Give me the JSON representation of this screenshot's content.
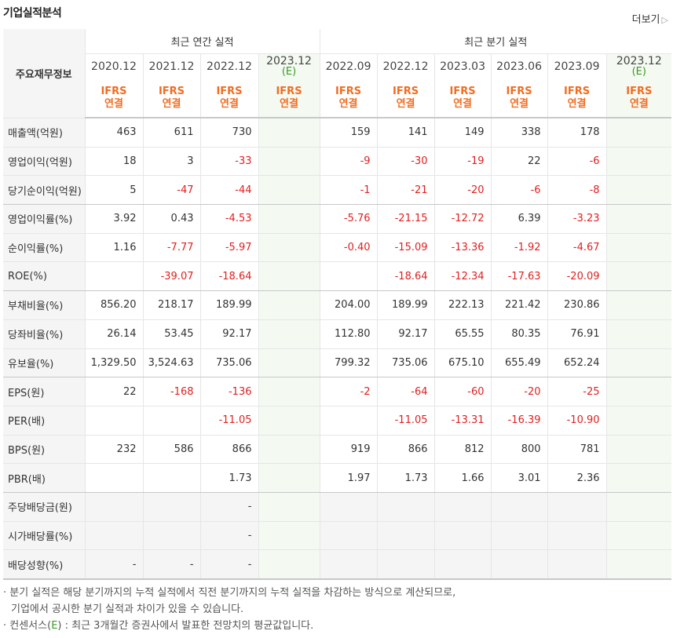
{
  "header": {
    "title": "기업실적분석",
    "more_label": "더보기"
  },
  "table": {
    "corner_label": "주요재무정보",
    "groups": {
      "annual": "최근 연간 실적",
      "quarterly": "최근 분기 실적"
    },
    "periods": {
      "a1": "2020.12",
      "a2": "2021.12",
      "a3": "2022.12",
      "a4": "2023.12",
      "a4_e": "(E)",
      "q1": "2022.09",
      "q2": "2022.12",
      "q3": "2023.03",
      "q4": "2023.06",
      "q5": "2023.09",
      "q6": "2023.12",
      "q6_e": "(E)"
    },
    "std_top": "IFRS",
    "std_bottom": "연결",
    "rows": [
      {
        "label": "매출액(억원)",
        "v": [
          "463",
          "611",
          "730",
          "",
          "159",
          "141",
          "149",
          "338",
          "178",
          ""
        ]
      },
      {
        "label": "영업이익(억원)",
        "v": [
          "18",
          "3",
          "-33",
          "",
          "-9",
          "-30",
          "-19",
          "22",
          "-6",
          ""
        ]
      },
      {
        "label": "당기순이익(억원)",
        "v": [
          "5",
          "-47",
          "-44",
          "",
          "-1",
          "-21",
          "-20",
          "-6",
          "-8",
          ""
        ]
      },
      {
        "label": "영업이익률(%)",
        "v": [
          "3.92",
          "0.43",
          "-4.53",
          "",
          "-5.76",
          "-21.15",
          "-12.72",
          "6.39",
          "-3.23",
          ""
        ]
      },
      {
        "label": "순이익률(%)",
        "v": [
          "1.16",
          "-7.77",
          "-5.97",
          "",
          "-0.40",
          "-15.09",
          "-13.36",
          "-1.92",
          "-4.67",
          ""
        ]
      },
      {
        "label": "ROE(%)",
        "v": [
          "",
          "-39.07",
          "-18.64",
          "",
          "",
          "-18.64",
          "-12.34",
          "-17.63",
          "-20.09",
          ""
        ]
      },
      {
        "label": "부채비율(%)",
        "v": [
          "856.20",
          "218.17",
          "189.99",
          "",
          "204.00",
          "189.99",
          "222.13",
          "221.42",
          "230.86",
          ""
        ]
      },
      {
        "label": "당좌비율(%)",
        "v": [
          "26.14",
          "53.45",
          "92.17",
          "",
          "112.80",
          "92.17",
          "65.55",
          "80.35",
          "76.91",
          ""
        ]
      },
      {
        "label": "유보율(%)",
        "v": [
          "1,329.50",
          "3,524.63",
          "735.06",
          "",
          "799.32",
          "735.06",
          "675.10",
          "655.49",
          "652.24",
          ""
        ]
      },
      {
        "label": "EPS(원)",
        "v": [
          "22",
          "-168",
          "-136",
          "",
          "-2",
          "-64",
          "-60",
          "-20",
          "-25",
          ""
        ]
      },
      {
        "label": "PER(배)",
        "v": [
          "",
          "",
          "-11.05",
          "",
          "",
          "-11.05",
          "-13.31",
          "-16.39",
          "-10.90",
          ""
        ]
      },
      {
        "label": "BPS(원)",
        "v": [
          "232",
          "586",
          "866",
          "",
          "919",
          "866",
          "812",
          "800",
          "781",
          ""
        ]
      },
      {
        "label": "PBR(배)",
        "v": [
          "",
          "",
          "1.73",
          "",
          "1.97",
          "1.73",
          "1.66",
          "3.01",
          "2.36",
          ""
        ]
      },
      {
        "label": "주당배당금(원)",
        "v": [
          "",
          "",
          "-",
          "",
          "",
          "",
          "",
          "",
          "",
          ""
        ]
      },
      {
        "label": "시가배당률(%)",
        "v": [
          "",
          "",
          "-",
          "",
          "",
          "",
          "",
          "",
          "",
          ""
        ]
      },
      {
        "label": "배당성향(%)",
        "v": [
          "-",
          "-",
          "-",
          "",
          "",
          "",
          "",
          "",
          "",
          ""
        ]
      }
    ]
  },
  "notes": {
    "line1": "분기 실적은 해당 분기까지의 누적 실적에서 직전 분기까지의 누적 실적을 차감하는 방식으로 계산되므로,",
    "line2": "기업에서 공시한 분기 실적과 차이가 있을 수 있습니다.",
    "line3_pre": "컨센서스(",
    "line3_e": "E",
    "line3_post": ") : 최근 3개월간 증권사에서 발표한 전망치의 평균값입니다."
  },
  "colors": {
    "accent": "#f26c21",
    "negative": "#e02020",
    "estimate": "#3a9b24",
    "estimate_bg": "#f4f9f2"
  }
}
